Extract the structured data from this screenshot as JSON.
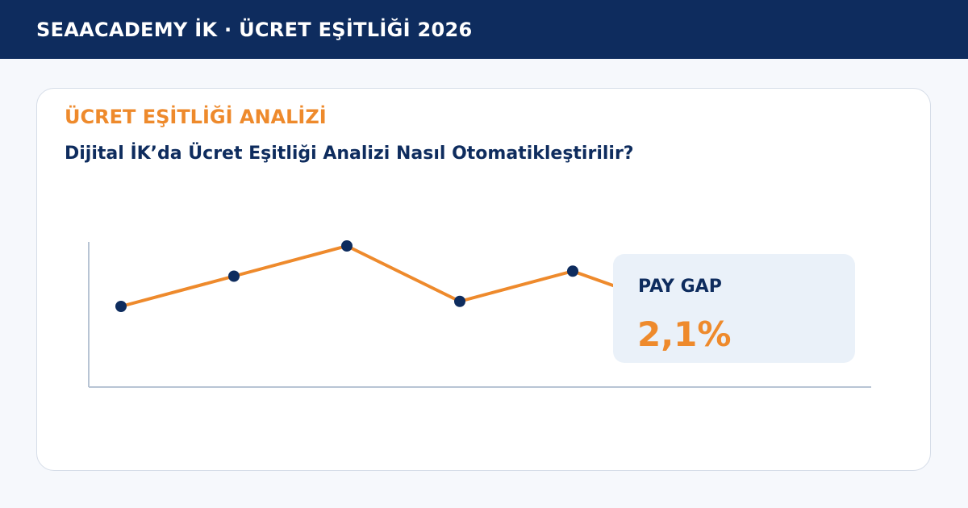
{
  "header": {
    "title": "SEAACADEMY İK · ÜCRET EŞİTLİĞİ 2026"
  },
  "card": {
    "eyebrow": "ÜCRET EŞİTLİĞİ ANALİZİ",
    "headline": "Dijital İK’da Ücret Eşitliği Analizi Nasıl Otomatikleştirilir?"
  },
  "kpi": {
    "label": "PAY GAP",
    "value": "2,1%"
  },
  "colors": {
    "navy": "#0e2c5e",
    "accent": "#ee8a2c",
    "kpi_bg": "#eaf1f9",
    "axis": "#b8c4d4"
  },
  "chart_data": {
    "type": "line",
    "series": [
      {
        "values": [
          3.2,
          4.4,
          5.6,
          3.4,
          4.6,
          3.0
        ]
      }
    ],
    "ylim": [
      0,
      8
    ],
    "grid": false,
    "legend": "none"
  }
}
